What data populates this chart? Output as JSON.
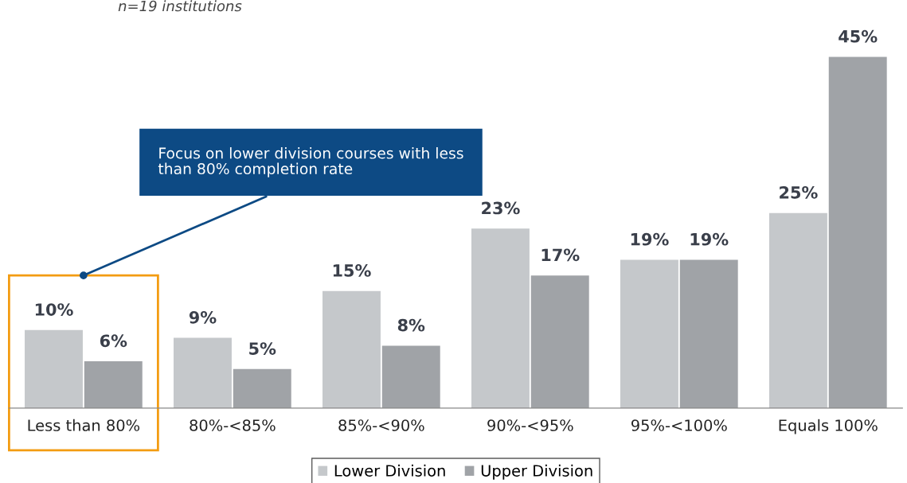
{
  "chart_data": {
    "type": "bar",
    "subtitle": "n=19 institutions",
    "categories": [
      "Less than 80%",
      "80%-<85%",
      "85%-<90%",
      "90%-<95%",
      "95%-<100%",
      "Equals 100%"
    ],
    "series": [
      {
        "name": "Lower Division",
        "color": "#c5c8cb",
        "values": [
          10,
          9,
          15,
          23,
          19,
          25
        ],
        "value_labels": [
          "10%",
          "9%",
          "15%",
          "23%",
          "19%",
          "25%"
        ]
      },
      {
        "name": "Upper Division",
        "color": "#a0a3a7",
        "values": [
          6,
          5,
          8,
          17,
          19,
          45
        ],
        "value_labels": [
          "6%",
          "5%",
          "8%",
          "17%",
          "19%",
          "45%"
        ]
      }
    ],
    "annotations": [
      "Focus on lower division courses with less than 80% completion rate"
    ],
    "legend": "bottom",
    "grid": false
  }
}
